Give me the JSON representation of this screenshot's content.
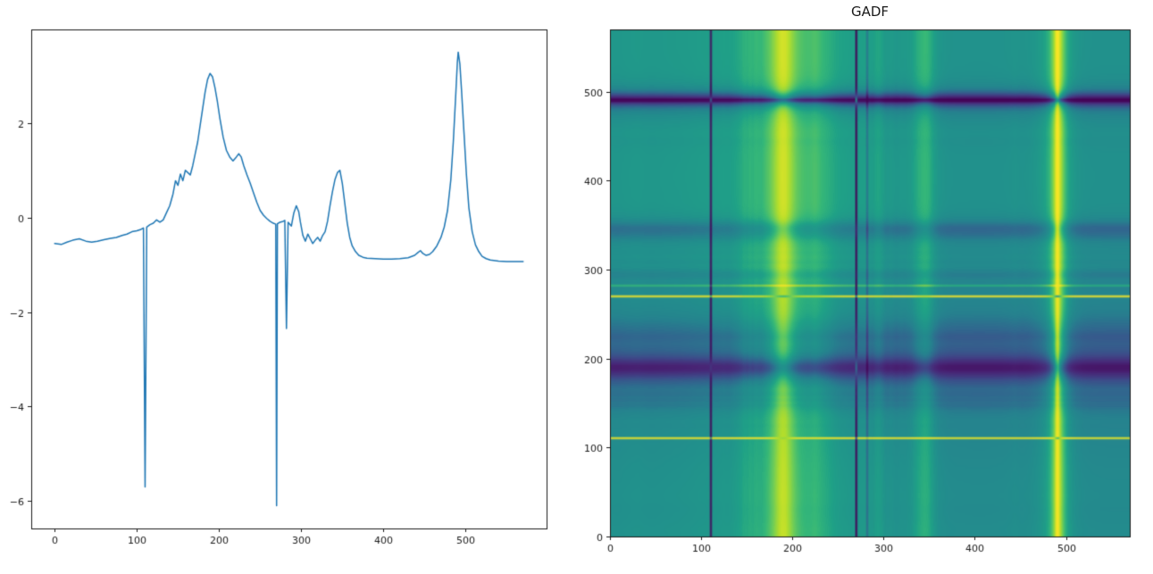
{
  "chart_data": [
    {
      "type": "line",
      "title": "",
      "xlabel": "",
      "ylabel": "",
      "xlim": [
        -28.5,
        598.5
      ],
      "ylim": [
        -6.58,
        3.98
      ],
      "xticks": [
        0,
        100,
        200,
        300,
        400,
        500
      ],
      "xtick_labels": [
        "0",
        "100",
        "200",
        "300",
        "400",
        "500"
      ],
      "yticks": [
        -6,
        -4,
        -2,
        0,
        2
      ],
      "ytick_labels": [
        "−6",
        "−4",
        "−2",
        "0",
        "2"
      ],
      "line_color": "#1f77b4",
      "line_width": 1.5,
      "grid": false,
      "x": [
        0,
        8,
        15,
        22,
        30,
        38,
        45,
        52,
        60,
        68,
        75,
        82,
        88,
        94,
        100,
        105,
        108,
        110,
        112,
        116,
        120,
        124,
        128,
        132,
        136,
        140,
        144,
        147,
        150,
        153,
        156,
        159,
        162,
        165,
        168,
        171,
        174,
        177,
        180,
        183,
        186,
        189,
        192,
        195,
        198,
        201,
        205,
        209,
        213,
        217,
        221,
        224,
        227,
        230,
        234,
        238,
        242,
        246,
        250,
        254,
        258,
        262,
        266,
        269,
        270,
        271,
        274,
        278,
        280,
        282,
        284,
        288,
        291,
        294,
        297,
        299,
        302,
        305,
        308,
        311,
        314,
        317,
        320,
        323,
        326,
        329,
        332,
        335,
        338,
        341,
        344,
        347,
        350,
        353,
        356,
        359,
        362,
        366,
        370,
        375,
        380,
        390,
        400,
        410,
        420,
        430,
        438,
        442,
        445,
        448,
        452,
        456,
        460,
        465,
        470,
        474,
        478,
        482,
        485,
        488,
        490,
        491,
        493,
        495,
        498,
        501,
        504,
        508,
        512,
        516,
        520,
        525,
        530,
        540,
        550,
        560,
        570
      ],
      "y": [
        -0.55,
        -0.57,
        -0.52,
        -0.48,
        -0.45,
        -0.5,
        -0.52,
        -0.5,
        -0.47,
        -0.44,
        -0.42,
        -0.38,
        -0.35,
        -0.3,
        -0.28,
        -0.25,
        -0.22,
        -5.7,
        -0.2,
        -0.15,
        -0.12,
        -0.05,
        -0.1,
        -0.05,
        0.1,
        0.25,
        0.5,
        0.78,
        0.68,
        0.92,
        0.78,
        1.0,
        0.95,
        0.9,
        1.1,
        1.35,
        1.6,
        1.95,
        2.3,
        2.65,
        2.92,
        3.05,
        2.98,
        2.75,
        2.45,
        2.1,
        1.7,
        1.42,
        1.28,
        1.2,
        1.28,
        1.35,
        1.28,
        1.1,
        0.9,
        0.72,
        0.52,
        0.32,
        0.15,
        0.05,
        -0.02,
        -0.08,
        -0.12,
        -0.14,
        -6.1,
        -0.13,
        -0.1,
        -0.08,
        -0.06,
        -2.35,
        -0.1,
        -0.18,
        0.1,
        0.25,
        0.12,
        -0.1,
        -0.38,
        -0.5,
        -0.35,
        -0.45,
        -0.55,
        -0.48,
        -0.42,
        -0.5,
        -0.38,
        -0.3,
        -0.08,
        0.25,
        0.55,
        0.8,
        0.95,
        1.0,
        0.72,
        0.3,
        -0.12,
        -0.42,
        -0.6,
        -0.72,
        -0.8,
        -0.84,
        -0.86,
        -0.87,
        -0.88,
        -0.88,
        -0.87,
        -0.85,
        -0.8,
        -0.74,
        -0.7,
        -0.76,
        -0.8,
        -0.78,
        -0.72,
        -0.6,
        -0.42,
        -0.2,
        0.15,
        0.8,
        1.6,
        2.6,
        3.3,
        3.5,
        3.25,
        2.7,
        1.8,
        0.9,
        0.2,
        -0.3,
        -0.58,
        -0.72,
        -0.82,
        -0.87,
        -0.9,
        -0.92,
        -0.93,
        -0.93,
        -0.93
      ]
    },
    {
      "type": "heatmap",
      "title": "GADF",
      "method": "gramian-angular-difference-field computed from the line-chart signal",
      "extent": [
        0,
        570,
        0,
        570
      ],
      "xticks": [
        0,
        100,
        200,
        300,
        400,
        500
      ],
      "xtick_labels": [
        "0",
        "100",
        "200",
        "300",
        "400",
        "500"
      ],
      "yticks": [
        0,
        100,
        200,
        300,
        400,
        500
      ],
      "ytick_labels": [
        "0",
        "100",
        "200",
        "300",
        "400",
        "500"
      ],
      "resample_step": 2,
      "value_range": [
        -1,
        1
      ],
      "colormap": "viridis",
      "colormap_stops": [
        [
          0.0,
          "#440154"
        ],
        [
          0.1,
          "#482878"
        ],
        [
          0.2,
          "#3e4a89"
        ],
        [
          0.3,
          "#31688e"
        ],
        [
          0.4,
          "#26828e"
        ],
        [
          0.5,
          "#21918c"
        ],
        [
          0.6,
          "#1fa187"
        ],
        [
          0.7,
          "#35b779"
        ],
        [
          0.8,
          "#6dcd59"
        ],
        [
          0.9,
          "#b4de2c"
        ],
        [
          1.0,
          "#fde725"
        ]
      ]
    }
  ]
}
